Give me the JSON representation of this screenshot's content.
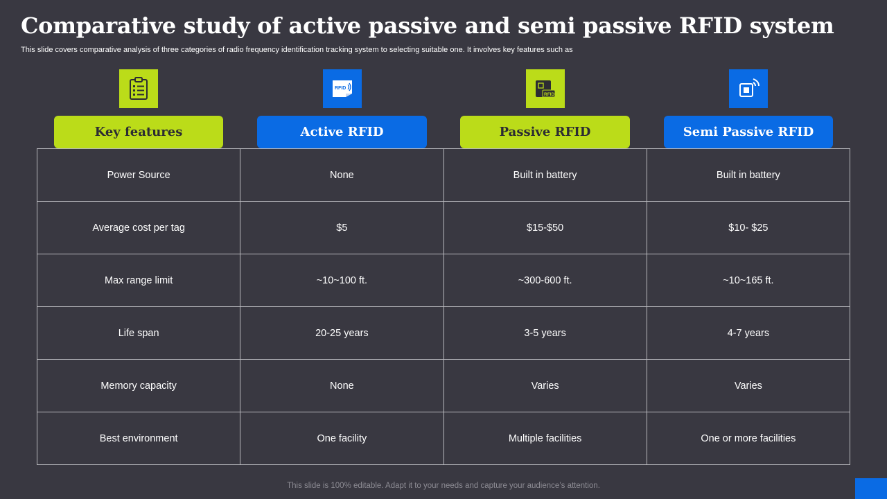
{
  "title": "Comparative study of active passive and semi passive RFID system",
  "subtitle": "This slide covers comparative analysis of three categories of radio frequency identification tracking system to selecting suitable one. It involves key features such as",
  "colors": {
    "background": "#393841",
    "green": "#bbdc19",
    "blue": "#0a6be4"
  },
  "icons": [
    {
      "name": "clipboard-checklist-icon"
    },
    {
      "name": "rfid-card-icon",
      "text": "RFID"
    },
    {
      "name": "rfid-chip-icon",
      "text": "RFID"
    },
    {
      "name": "wireless-chip-icon"
    }
  ],
  "headers": [
    "Key features",
    "Active RFID",
    "Passive RFID",
    "Semi Passive RFID"
  ],
  "rows": [
    [
      "Power Source",
      "None",
      "Built in battery",
      "Built in battery"
    ],
    [
      "Average cost per tag",
      "$5",
      "$15-$50",
      "$10- $25"
    ],
    [
      "Max range limit",
      "~10~100 ft.",
      "~300-600 ft.",
      "~10~165 ft."
    ],
    [
      "Life span",
      "20-25 years",
      "3-5 years",
      "4-7 years"
    ],
    [
      "Memory capacity",
      "None",
      "Varies",
      "Varies"
    ],
    [
      "Best environment",
      "One facility",
      "Multiple  facilities",
      "One or more facilities"
    ]
  ],
  "footer": "This slide is 100% editable. Adapt it to your needs and capture your audience’s attention."
}
